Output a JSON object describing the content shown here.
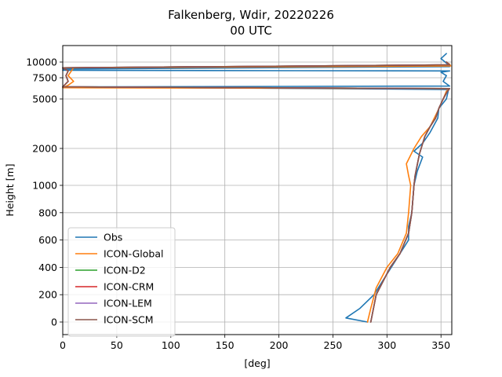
{
  "chart_data": {
    "type": "line",
    "title": "Falkenberg, Wdir, 20220226",
    "subtitle": "00 UTC",
    "xlabel": "[deg]",
    "ylabel": "Height [m]",
    "xlim": [
      0,
      360
    ],
    "xticks": [
      0,
      50,
      100,
      150,
      200,
      250,
      300,
      350
    ],
    "yticks": [
      0,
      200,
      400,
      600,
      800,
      1000,
      2000,
      5000,
      7500,
      10000
    ],
    "grid": true,
    "legend_position": "lower-left",
    "colors": {
      "Obs": "#1f77b4",
      "ICON-Global": "#ff7f0e",
      "ICON-D2": "#2ca02c",
      "ICON-CRM": "#d62728",
      "ICON-LEM": "#9467bd",
      "ICON-SCM": "#8c564b"
    },
    "series": [
      {
        "name": "Obs",
        "points": [
          [
            282,
            0
          ],
          [
            262,
            30
          ],
          [
            275,
            100
          ],
          [
            288,
            200
          ],
          [
            300,
            350
          ],
          [
            312,
            500
          ],
          [
            320,
            600
          ],
          [
            320,
            700
          ],
          [
            323,
            800
          ],
          [
            325,
            1000
          ],
          [
            328,
            1300
          ],
          [
            333,
            1700
          ],
          [
            325,
            1900
          ],
          [
            333,
            2200
          ],
          [
            340,
            2700
          ],
          [
            347,
            3500
          ],
          [
            348,
            4200
          ],
          [
            355,
            5000
          ],
          [
            357,
            6000
          ],
          [
            0,
            6300
          ],
          [
            358,
            6400
          ],
          [
            352,
            7000
          ],
          [
            355,
            7800
          ],
          [
            350,
            8300
          ],
          [
            358,
            8500
          ],
          [
            0,
            8600
          ],
          [
            10,
            8700
          ],
          [
            0,
            8800
          ],
          [
            358,
            9200
          ],
          [
            357,
            9500
          ],
          [
            350,
            10200
          ],
          [
            355,
            10500
          ]
        ]
      },
      {
        "name": "ICON-Global",
        "points": [
          [
            282,
            0
          ],
          [
            285,
            100
          ],
          [
            290,
            250
          ],
          [
            300,
            400
          ],
          [
            310,
            500
          ],
          [
            318,
            650
          ],
          [
            320,
            800
          ],
          [
            322,
            1000
          ],
          [
            320,
            1200
          ],
          [
            318,
            1500
          ],
          [
            325,
            2000
          ],
          [
            332,
            2500
          ],
          [
            340,
            3000
          ],
          [
            347,
            4000
          ],
          [
            352,
            5000
          ],
          [
            355,
            5800
          ],
          [
            358,
            6100
          ],
          [
            0,
            6200
          ],
          [
            5,
            6500
          ],
          [
            10,
            7000
          ],
          [
            5,
            7800
          ],
          [
            8,
            8500
          ],
          [
            10,
            9000
          ],
          [
            359,
            9300
          ],
          [
            358,
            9600
          ],
          [
            355,
            10000
          ]
        ]
      },
      {
        "name": "ICON-D2",
        "points": [
          [
            285,
            0
          ],
          [
            290,
            200
          ],
          [
            303,
            400
          ],
          [
            312,
            500
          ],
          [
            320,
            650
          ],
          [
            323,
            800
          ],
          [
            325,
            1000
          ],
          [
            326,
            1200
          ],
          [
            330,
            1800
          ],
          [
            335,
            2500
          ],
          [
            340,
            3000
          ],
          [
            345,
            3500
          ],
          [
            348,
            4200
          ],
          [
            352,
            5000
          ],
          [
            356,
            5800
          ],
          [
            358,
            6100
          ],
          [
            0,
            6300
          ],
          [
            5,
            7000
          ],
          [
            3,
            7800
          ],
          [
            5,
            8500
          ],
          [
            0,
            9000
          ],
          [
            358,
            9500
          ],
          [
            355,
            10000
          ]
        ]
      },
      {
        "name": "ICON-CRM",
        "points": [
          [
            285,
            0
          ],
          [
            290,
            200
          ],
          [
            303,
            400
          ],
          [
            312,
            500
          ],
          [
            320,
            650
          ],
          [
            323,
            800
          ],
          [
            325,
            1000
          ],
          [
            326,
            1200
          ],
          [
            330,
            1800
          ],
          [
            335,
            2500
          ],
          [
            340,
            3000
          ],
          [
            345,
            3500
          ],
          [
            348,
            4200
          ],
          [
            352,
            5000
          ],
          [
            356,
            5800
          ],
          [
            358,
            6100
          ],
          [
            0,
            6300
          ],
          [
            5,
            7000
          ],
          [
            3,
            7800
          ],
          [
            5,
            8500
          ],
          [
            0,
            9000
          ],
          [
            358,
            9500
          ],
          [
            355,
            10000
          ]
        ]
      },
      {
        "name": "ICON-LEM",
        "points": [
          [
            285,
            0
          ],
          [
            290,
            200
          ],
          [
            303,
            400
          ],
          [
            312,
            500
          ],
          [
            320,
            650
          ],
          [
            323,
            800
          ],
          [
            325,
            1000
          ],
          [
            326,
            1200
          ],
          [
            330,
            1800
          ],
          [
            335,
            2500
          ],
          [
            340,
            3000
          ],
          [
            345,
            3500
          ],
          [
            348,
            4200
          ],
          [
            352,
            5000
          ],
          [
            356,
            5800
          ],
          [
            358,
            6100
          ],
          [
            0,
            6300
          ],
          [
            5,
            7000
          ],
          [
            3,
            7800
          ],
          [
            5,
            8500
          ],
          [
            0,
            9000
          ],
          [
            358,
            9500
          ],
          [
            355,
            10000
          ]
        ]
      },
      {
        "name": "ICON-SCM",
        "points": [
          [
            285,
            0
          ],
          [
            290,
            200
          ],
          [
            303,
            400
          ],
          [
            312,
            500
          ],
          [
            320,
            650
          ],
          [
            323,
            800
          ],
          [
            325,
            1000
          ],
          [
            326,
            1200
          ],
          [
            330,
            1800
          ],
          [
            335,
            2500
          ],
          [
            340,
            3000
          ],
          [
            343,
            3300
          ],
          [
            345,
            3500
          ],
          [
            348,
            4200
          ],
          [
            352,
            5000
          ],
          [
            356,
            5800
          ],
          [
            358,
            6100
          ],
          [
            0,
            6300
          ],
          [
            5,
            7000
          ],
          [
            3,
            7800
          ],
          [
            5,
            8500
          ],
          [
            0,
            9000
          ],
          [
            358,
            9500
          ],
          [
            355,
            10000
          ]
        ]
      }
    ]
  }
}
